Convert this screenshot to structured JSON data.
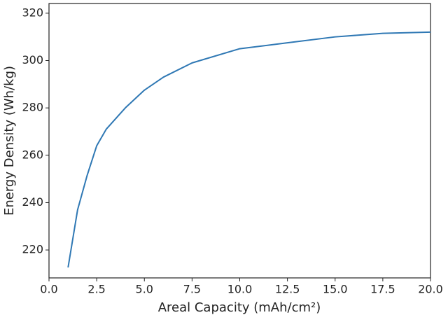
{
  "chart_data": {
    "type": "line",
    "x_label": "Areal Capacity (mAh/cm²)",
    "y_label": "Energy Density (Wh/kg)",
    "series": [
      {
        "color": "#2f78b4",
        "x": [
          1,
          1.5,
          2,
          2.5,
          3,
          4,
          5,
          6,
          7.5,
          10,
          12.5,
          15,
          17.5,
          20
        ],
        "values": [
          212.6,
          237,
          251.5,
          264,
          271,
          280,
          287.5,
          293,
          299,
          305,
          307.5,
          310,
          311.5,
          312
        ]
      }
    ],
    "xlim": [
      0,
      20
    ],
    "xticks": [
      {
        "value": 0,
        "label": "0.0"
      },
      {
        "value": 2.5,
        "label": "2.5"
      },
      {
        "value": 5,
        "label": "5.0"
      },
      {
        "value": 7.5,
        "label": "7.5"
      },
      {
        "value": 10,
        "label": "10.0"
      },
      {
        "value": 12.5,
        "label": "12.5"
      },
      {
        "value": 15,
        "label": "15.0"
      },
      {
        "value": 17.5,
        "label": "17.5"
      },
      {
        "value": 20,
        "label": "20.0"
      }
    ],
    "ylim": [
      208.2,
      324.1
    ],
    "yticks": [
      220,
      240,
      260,
      280,
      300,
      320
    ],
    "grid": false
  }
}
